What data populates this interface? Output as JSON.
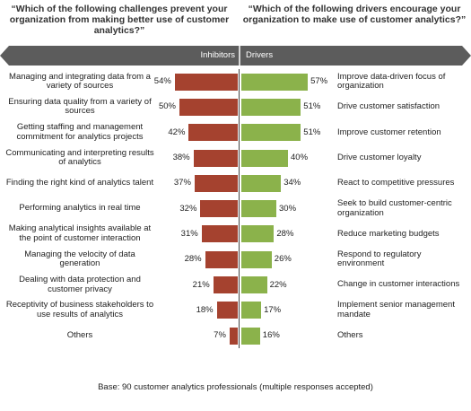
{
  "chart_data": {
    "type": "bar",
    "titles": {
      "left": "“Which of the following challenges prevent your organization from making better use of customer analytics?”",
      "right": "“Which of the following drivers encourage your organization to make use of customer analytics?”"
    },
    "legend": {
      "left": "Inhibitors",
      "right": "Drivers"
    },
    "colors": {
      "inhibitors": "#a5422f",
      "drivers": "#8bb24b",
      "header": "#5c5c5c"
    },
    "inhibitors": [
      {
        "label": "Managing and integrating data from a variety of sources",
        "value": 54,
        "value_label": "54%"
      },
      {
        "label": "Ensuring data quality from a variety of sources",
        "value": 50,
        "value_label": "50%"
      },
      {
        "label": "Getting staffing and management commitment for analytics projects",
        "value": 42,
        "value_label": "42%"
      },
      {
        "label": "Communicating and interpreting results of analytics",
        "value": 38,
        "value_label": "38%"
      },
      {
        "label": "Finding the right kind of analytics talent",
        "value": 37,
        "value_label": "37%"
      },
      {
        "label": "Performing analytics in real time",
        "value": 32,
        "value_label": "32%"
      },
      {
        "label": "Making analytical insights available at the point of customer interaction",
        "value": 31,
        "value_label": "31%"
      },
      {
        "label": "Managing the velocity of data generation",
        "value": 28,
        "value_label": "28%"
      },
      {
        "label": "Dealing with data protection and customer privacy",
        "value": 21,
        "value_label": "21%"
      },
      {
        "label": "Receptivity of business stakeholders to use results of analytics",
        "value": 18,
        "value_label": "18%"
      },
      {
        "label": "Others",
        "value": 7,
        "value_label": "7%"
      }
    ],
    "drivers": [
      {
        "label": "Improve data-driven focus of organization",
        "value": 57,
        "value_label": "57%"
      },
      {
        "label": "Drive customer satisfaction",
        "value": 51,
        "value_label": "51%"
      },
      {
        "label": "Improve customer retention",
        "value": 51,
        "value_label": "51%"
      },
      {
        "label": "Drive customer loyalty",
        "value": 40,
        "value_label": "40%"
      },
      {
        "label": "React to competitive pressures",
        "value": 34,
        "value_label": "34%"
      },
      {
        "label": "Seek to build customer-centric organization",
        "value": 30,
        "value_label": "30%"
      },
      {
        "label": "Reduce marketing budgets",
        "value": 28,
        "value_label": "28%"
      },
      {
        "label": "Respond to regulatory environment",
        "value": 26,
        "value_label": "26%"
      },
      {
        "label": "Change in customer interactions",
        "value": 22,
        "value_label": "22%"
      },
      {
        "label": "Implement senior management mandate",
        "value": 17,
        "value_label": "17%"
      },
      {
        "label": "Others",
        "value": 16,
        "value_label": "16%"
      }
    ],
    "footnote": "Base: 90 customer analytics professionals (multiple responses accepted)"
  }
}
